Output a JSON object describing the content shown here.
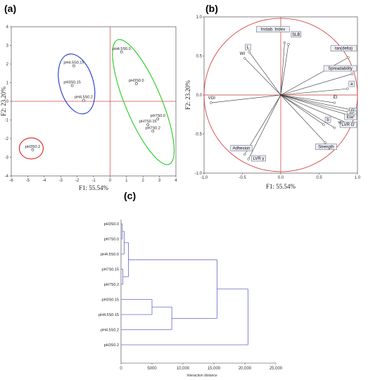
{
  "panels": {
    "a": "(a)",
    "b": "(b)",
    "c": "(c)"
  },
  "chart_data": [
    {
      "type": "scatter",
      "panel": "(a)",
      "xlabel": "F1: 55.54%",
      "ylabel": "F2: 23.20%",
      "xlim": [
        -6,
        4
      ],
      "ylim": [
        -4,
        4
      ],
      "xticks": [
        -6,
        -5,
        -4,
        -3,
        -2,
        -1,
        0,
        1,
        2,
        3,
        4
      ],
      "yticks": [
        -4,
        -3,
        -2,
        -1,
        0,
        1,
        2,
        3,
        4
      ],
      "points": [
        {
          "label": "pH4.5S0.15",
          "x": -2.2,
          "y": 1.9
        },
        {
          "label": "pH3S0.15",
          "x": -2.3,
          "y": 0.85
        },
        {
          "label": "pH4.5S0.2",
          "x": -1.6,
          "y": 0.05
        },
        {
          "label": "pH4.5S0.0",
          "x": 0.7,
          "y": 2.65
        },
        {
          "label": "pH3S0.0",
          "x": 1.6,
          "y": 0.95
        },
        {
          "label": "pH7S0.0",
          "x": 2.9,
          "y": -0.95
        },
        {
          "label": "pH7S0.15",
          "x": 2.3,
          "y": -1.25
        },
        {
          "label": "pH7S0.2",
          "x": 2.6,
          "y": -1.6
        },
        {
          "label": "pH3S0.2",
          "x": -4.7,
          "y": -2.6
        }
      ],
      "groups": [
        {
          "color": "#2233cc",
          "members": [
            "pH4.5S0.15",
            "pH3S0.15",
            "pH4.5S0.2"
          ]
        },
        {
          "color": "#22cc22",
          "members": [
            "pH4.5S0.0",
            "pH3S0.0",
            "pH7S0.0",
            "pH7S0.15",
            "pH7S0.2"
          ]
        },
        {
          "color": "#dd2222",
          "members": [
            "pH3S0.2"
          ]
        }
      ]
    },
    {
      "type": "scatter",
      "panel": "(b)",
      "xlabel": "F1: 55.54%",
      "ylabel": "F2: 23.20%",
      "xlim": [
        -1,
        1
      ],
      "ylim": [
        -1,
        1
      ],
      "xticks": [
        -1.0,
        -0.5,
        0.0,
        0.5,
        1.0
      ],
      "yticks": [
        -1.0,
        -0.5,
        0.0,
        0.5,
        1.0
      ],
      "circle_color": "#cc3333",
      "loadings": [
        {
          "label": "Instab. Index",
          "x": 0.05,
          "y": 0.67,
          "boxed": true
        },
        {
          "label": "SLB",
          "x": 0.1,
          "y": 0.65,
          "boxed": true
        },
        {
          "label": "tan(delta)",
          "x": 0.88,
          "y": 0.48,
          "boxed": true
        },
        {
          "label": "Spreadability",
          "x": 0.93,
          "y": 0.27,
          "boxed": true
        },
        {
          "label": "a",
          "x": 0.87,
          "y": 0.08,
          "boxed": true
        },
        {
          "label": "L",
          "x": -0.41,
          "y": 0.55,
          "boxed": true
        },
        {
          "label": "WI",
          "x": -0.47,
          "y": 0.47,
          "boxed": false
        },
        {
          "label": "VGI",
          "x": -0.91,
          "y": -0.1,
          "boxed": false
        },
        {
          "label": "EI",
          "x": 0.7,
          "y": -0.1,
          "boxed": false
        },
        {
          "label": "G'",
          "x": 0.97,
          "y": -0.2,
          "boxed": true
        },
        {
          "label": "G''",
          "x": 0.96,
          "y": -0.24,
          "boxed": true
        },
        {
          "label": "Eta*",
          "x": 0.96,
          "y": -0.28,
          "boxed": true
        },
        {
          "label": "LVR G'",
          "x": 0.92,
          "y": -0.38,
          "boxed": true
        },
        {
          "label": "b",
          "x": 0.56,
          "y": -0.38,
          "boxed": true
        },
        {
          "label": "Yi",
          "x": 0.7,
          "y": -0.42,
          "boxed": false
        },
        {
          "label": "Strength",
          "x": 0.58,
          "y": -0.61,
          "boxed": true
        },
        {
          "label": "Adhesion",
          "x": -0.47,
          "y": -0.76,
          "boxed": true
        },
        {
          "label": "LVR γ",
          "x": -0.42,
          "y": -0.82,
          "boxed": true
        }
      ]
    },
    {
      "type": "dendrogram",
      "panel": "(c)",
      "xlabel": "Interaction distance",
      "xlim": [
        0,
        25000
      ],
      "xticks": [
        "0",
        "5000",
        "10,000",
        "15,000",
        "20,000",
        "25,000"
      ],
      "leaves": [
        "pH3S0.0",
        "pH7S0.0",
        "pH4.5S0.0",
        "pH7S0.15",
        "pH7S0.2",
        "pH3S0.15",
        "pH4.5S0.15",
        "pH4.5S0.2",
        "pH3S0.2"
      ],
      "merges": [
        {
          "a": "pH3S0.0",
          "b": "pH7S0.0",
          "height": 200
        },
        {
          "a": "pH7S0.15",
          "b": "pH7S0.2",
          "height": 300
        },
        {
          "a": "m0",
          "b": "pH4.5S0.0",
          "height": 500
        },
        {
          "a": "m2",
          "b": "m1",
          "height": 1200
        },
        {
          "a": "pH3S0.15",
          "b": "pH4.5S0.15",
          "height": 5000
        },
        {
          "a": "m4",
          "b": "pH4.5S0.2",
          "height": 8200
        },
        {
          "a": "m3",
          "b": "m5",
          "height": 15500
        },
        {
          "a": "m6",
          "b": "pH3S0.2",
          "height": 20500
        }
      ],
      "line_color": "#6666cc"
    }
  ]
}
